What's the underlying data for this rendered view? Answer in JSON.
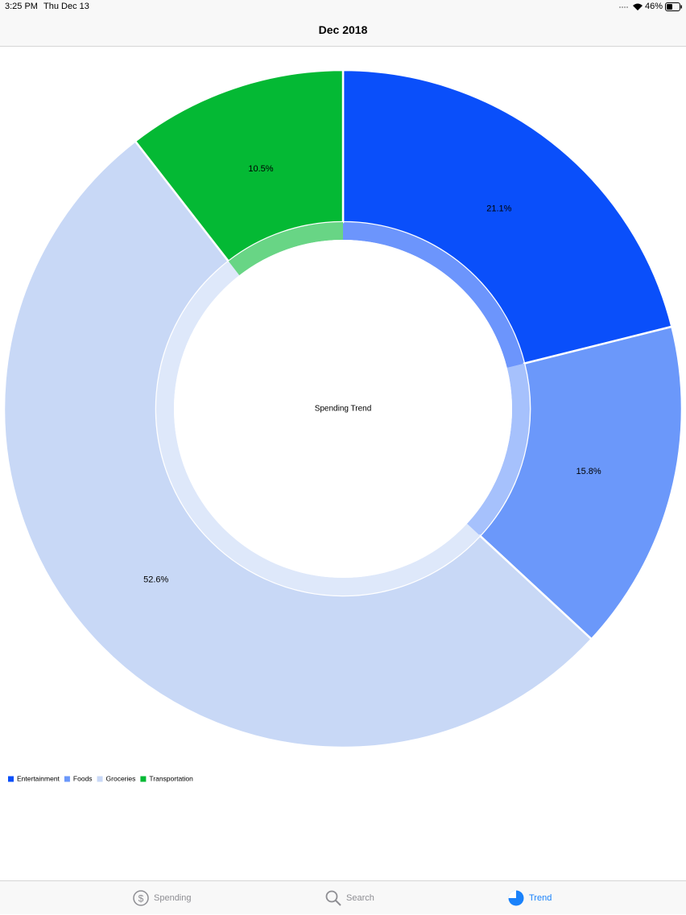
{
  "status_bar": {
    "time": "3:25 PM",
    "date": "Thu Dec 13",
    "battery": "46%"
  },
  "nav": {
    "title": "Dec 2018"
  },
  "chart_data": {
    "type": "donut",
    "title": "Spending Trend",
    "categories": [
      "Entertainment",
      "Foods",
      "Groceries",
      "Transportation"
    ],
    "values": [
      21.1,
      15.8,
      52.6,
      10.5
    ],
    "value_labels": [
      "21.1%",
      "15.8%",
      "52.6%",
      "10.5%"
    ],
    "colors": [
      "#0a4ffa",
      "#6b98fa",
      "#c8d8f6",
      "#04b934"
    ],
    "legend": "bottom-left"
  },
  "tab_bar": {
    "tabs": [
      "Spending",
      "Search",
      "Trend"
    ]
  }
}
